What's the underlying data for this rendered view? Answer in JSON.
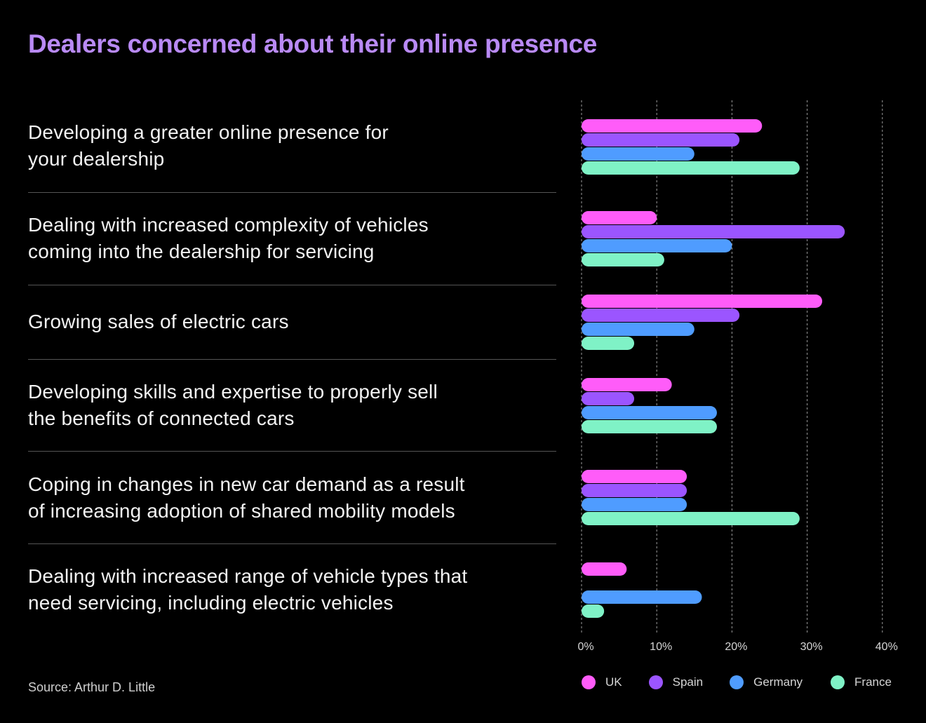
{
  "title": "Dealers concerned about their online presence",
  "source": "Source: Arthur D. Little",
  "chart_data": {
    "type": "bar",
    "orientation": "horizontal",
    "title": "Dealers concerned about their online presence",
    "xlabel": "",
    "ylabel": "",
    "xlim": [
      0,
      40
    ],
    "x_ticks": [
      "0%",
      "10%",
      "20%",
      "30%",
      "40%"
    ],
    "grid": true,
    "legend_position": "bottom-right",
    "categories": [
      "Developing a greater online presence for your dealership",
      "Dealing with increased complexity of vehicles coming into the dealership for servicing",
      "Growing sales of electric cars",
      "Developing skills and expertise to properly sell the benefits of connected cars",
      "Coping in changes in new car demand as a result of increasing adoption of shared mobility models",
      "Dealing with increased range of vehicle types that need servicing, including electric vehicles"
    ],
    "category_lines": [
      [
        "Developing a greater online presence for",
        "your dealership"
      ],
      [
        "Dealing with increased complexity of vehicles",
        "coming into the dealership for servicing"
      ],
      [
        "Growing sales of electric cars"
      ],
      [
        "Developing skills and expertise to properly sell",
        "the benefits of connected cars"
      ],
      [
        "Coping in changes in new car demand as a result",
        "of increasing adoption of shared mobility models"
      ],
      [
        "Dealing with increased range of vehicle types that",
        "need servicing, including electric vehicles"
      ]
    ],
    "series": [
      {
        "name": "UK",
        "color": "#ff5cf9",
        "values": [
          24,
          10,
          32,
          12,
          14,
          6
        ]
      },
      {
        "name": "Spain",
        "color": "#9b55ff",
        "values": [
          21,
          35,
          21,
          7,
          14,
          0
        ]
      },
      {
        "name": "Germany",
        "color": "#4f9cff",
        "values": [
          15,
          20,
          15,
          18,
          14,
          16
        ]
      },
      {
        "name": "France",
        "color": "#7ff2c6",
        "values": [
          29,
          11,
          7,
          18,
          29,
          3
        ]
      }
    ]
  }
}
